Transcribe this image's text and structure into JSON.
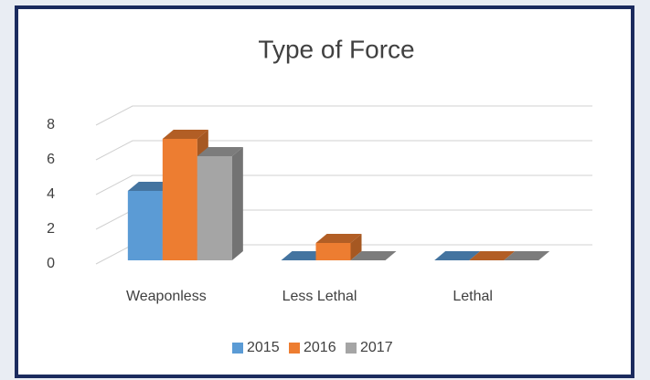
{
  "chart_data": {
    "type": "bar3d",
    "title": "Type of Force",
    "categories": [
      "Weaponless",
      "Less Lethal",
      "Lethal"
    ],
    "series": [
      {
        "name": "2015",
        "color": "#5b9bd5",
        "values": [
          4,
          0,
          0
        ]
      },
      {
        "name": "2016",
        "color": "#ed7d31",
        "values": [
          7,
          1,
          0
        ]
      },
      {
        "name": "2017",
        "color": "#a5a5a5",
        "values": [
          6,
          0,
          0
        ]
      }
    ],
    "ylim": [
      0,
      8
    ],
    "yticks": [
      0,
      2,
      4,
      6,
      8
    ],
    "grid": true,
    "legend": "bottom"
  }
}
